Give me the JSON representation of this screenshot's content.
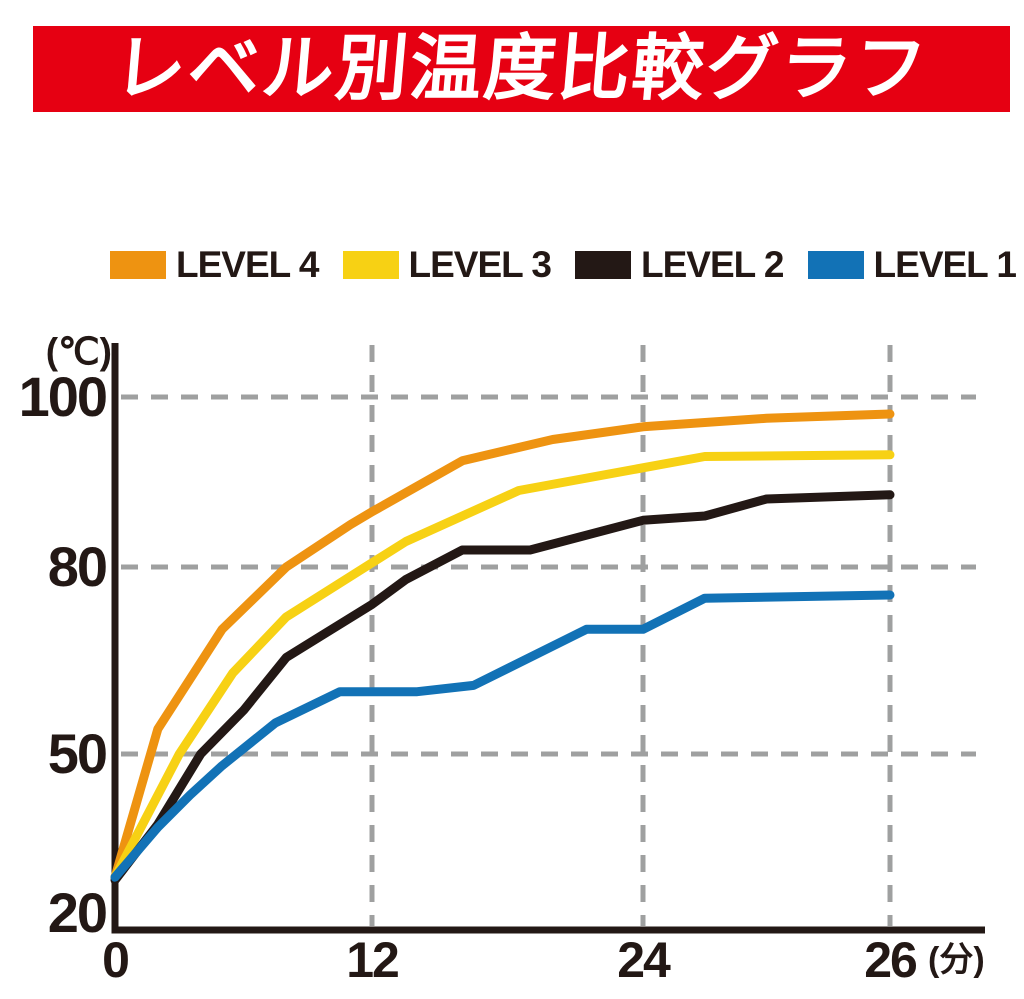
{
  "title": "レベル別温度比較グラフ",
  "colors": {
    "banner_bg": "#E60012",
    "banner_text": "#FFFFFF",
    "axis": "#231815",
    "grid": "#9FA0A0",
    "label_text": "#231815",
    "level4": "#EE9311",
    "level3": "#F7D114",
    "level2": "#231815",
    "level1": "#1272B6"
  },
  "chart_data": {
    "type": "line",
    "title": "レベル別温度比較グラフ",
    "x_label": "(分)",
    "y_label": "(℃)",
    "x_ticks": [
      0,
      12,
      24,
      26
    ],
    "y_ticks": [
      20,
      50,
      80,
      100
    ],
    "axis_scale": "equal-tick-spacing (non-linear)",
    "grid": "dashed",
    "legend_position": "top",
    "series": [
      {
        "name": "LEVEL 4",
        "color": "#EE9311",
        "points": [
          [
            0,
            29
          ],
          [
            2,
            54
          ],
          [
            5,
            70
          ],
          [
            8,
            80
          ],
          [
            11,
            85
          ],
          [
            12,
            86.5
          ],
          [
            16,
            92.5
          ],
          [
            20,
            95
          ],
          [
            24,
            96.5
          ],
          [
            25,
            97.5
          ],
          [
            26,
            98
          ]
        ]
      },
      {
        "name": "LEVEL 3",
        "color": "#F7D114",
        "points": [
          [
            0,
            29
          ],
          [
            3,
            50
          ],
          [
            5.5,
            63
          ],
          [
            8,
            72
          ],
          [
            12,
            80.5
          ],
          [
            13.5,
            83
          ],
          [
            18.5,
            89
          ],
          [
            24.5,
            93
          ],
          [
            26,
            93.2
          ]
        ]
      },
      {
        "name": "LEVEL 2",
        "color": "#231815",
        "points": [
          [
            0,
            28.5
          ],
          [
            2,
            38
          ],
          [
            4,
            50
          ],
          [
            6,
            57
          ],
          [
            8,
            65.5
          ],
          [
            12,
            74
          ],
          [
            13.5,
            78
          ],
          [
            16,
            82
          ],
          [
            19,
            82
          ],
          [
            24,
            85.5
          ],
          [
            24.5,
            86
          ],
          [
            25,
            88
          ],
          [
            26,
            88.5
          ]
        ]
      },
      {
        "name": "LEVEL 1",
        "color": "#1272B6",
        "points": [
          [
            0,
            29
          ],
          [
            2,
            37.5
          ],
          [
            3.5,
            43
          ],
          [
            5,
            48
          ],
          [
            7.5,
            55
          ],
          [
            10.5,
            60
          ],
          [
            14,
            60
          ],
          [
            16.5,
            61
          ],
          [
            21.5,
            70
          ],
          [
            24,
            70
          ],
          [
            24.5,
            75
          ],
          [
            26,
            75.5
          ]
        ]
      }
    ]
  }
}
